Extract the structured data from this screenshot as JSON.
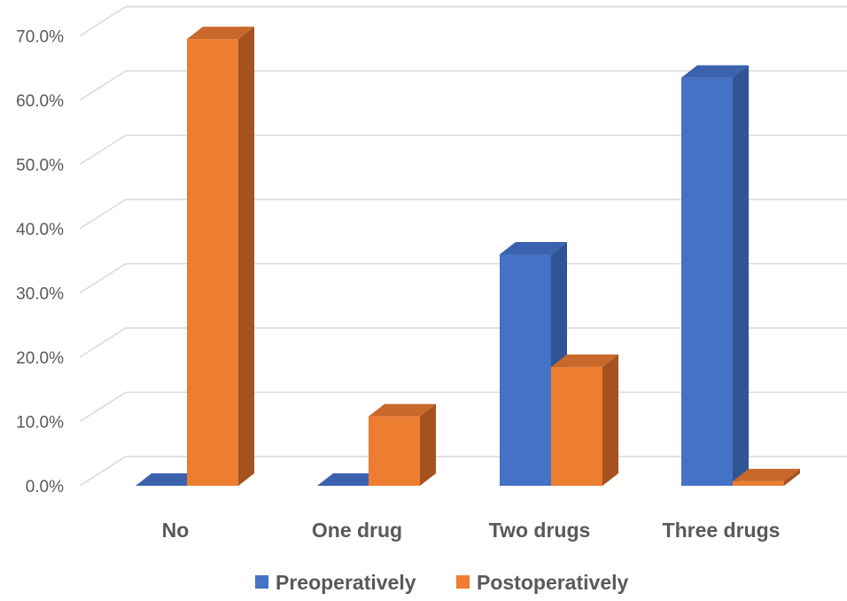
{
  "chart_data": {
    "type": "bar",
    "style": "3d-clustered-column",
    "title": "",
    "xlabel": "",
    "ylabel": "",
    "categories": [
      "No",
      "One drug",
      "Two drugs",
      "Three drugs"
    ],
    "series": [
      {
        "name": "Preoperatively",
        "values": [
          0.0,
          0.0,
          36.0,
          63.5
        ],
        "color": "#4472C4",
        "side_color": "#2F5597",
        "top_color": "#3A62AF"
      },
      {
        "name": "Postoperatively",
        "values": [
          69.5,
          10.8,
          18.5,
          0.7
        ],
        "color": "#ED7D31",
        "side_color": "#A5521E",
        "top_color": "#C8682A"
      }
    ],
    "ylim": [
      0,
      70
    ],
    "yticks": [
      "0.0%",
      "10.0%",
      "20.0%",
      "30.0%",
      "40.0%",
      "50.0%",
      "60.0%",
      "70.0%"
    ],
    "grid": true,
    "legend_position": "bottom"
  }
}
